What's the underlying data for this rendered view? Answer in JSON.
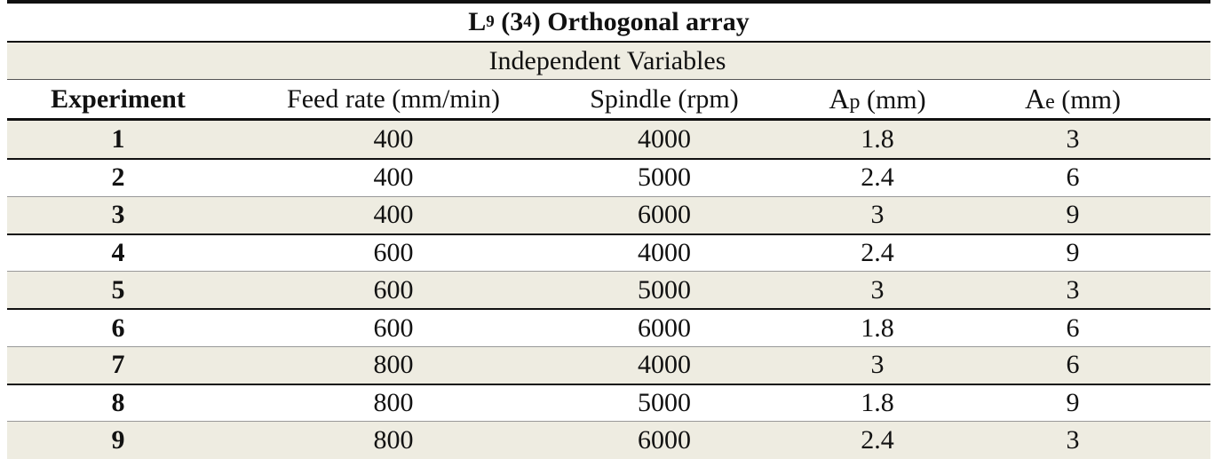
{
  "table": {
    "title_L": "L",
    "title_sub": "9",
    "title_open": "(3",
    "title_sup": "4",
    "title_rest": ") Orthogonal array",
    "group_header": "Independent Variables",
    "columns": {
      "experiment": "Experiment",
      "feed_rate": "Feed rate  (mm/min)",
      "spindle": "Spindle (rpm)",
      "ap_letter": "A",
      "ap_sub": "p",
      "ap_unit": " (mm)",
      "ae_letter": "A",
      "ae_sub": "e",
      "ae_unit": " (mm)"
    },
    "rows": [
      {
        "experiment": "1",
        "feed_rate": "400",
        "spindle": "4000",
        "ap": "1.8",
        "ae": "3"
      },
      {
        "experiment": "2",
        "feed_rate": "400",
        "spindle": "5000",
        "ap": "2.4",
        "ae": "6"
      },
      {
        "experiment": "3",
        "feed_rate": "400",
        "spindle": "6000",
        "ap": "3",
        "ae": "9"
      },
      {
        "experiment": "4",
        "feed_rate": "600",
        "spindle": "4000",
        "ap": "2.4",
        "ae": "9"
      },
      {
        "experiment": "5",
        "feed_rate": "600",
        "spindle": "5000",
        "ap": "3",
        "ae": "3"
      },
      {
        "experiment": "6",
        "feed_rate": "600",
        "spindle": "6000",
        "ap": "1.8",
        "ae": "6"
      },
      {
        "experiment": "7",
        "feed_rate": "800",
        "spindle": "4000",
        "ap": "3",
        "ae": "6"
      },
      {
        "experiment": "8",
        "feed_rate": "800",
        "spindle": "5000",
        "ap": "1.8",
        "ae": "9"
      },
      {
        "experiment": "9",
        "feed_rate": "800",
        "spindle": "6000",
        "ap": "2.4",
        "ae": "3"
      }
    ]
  }
}
